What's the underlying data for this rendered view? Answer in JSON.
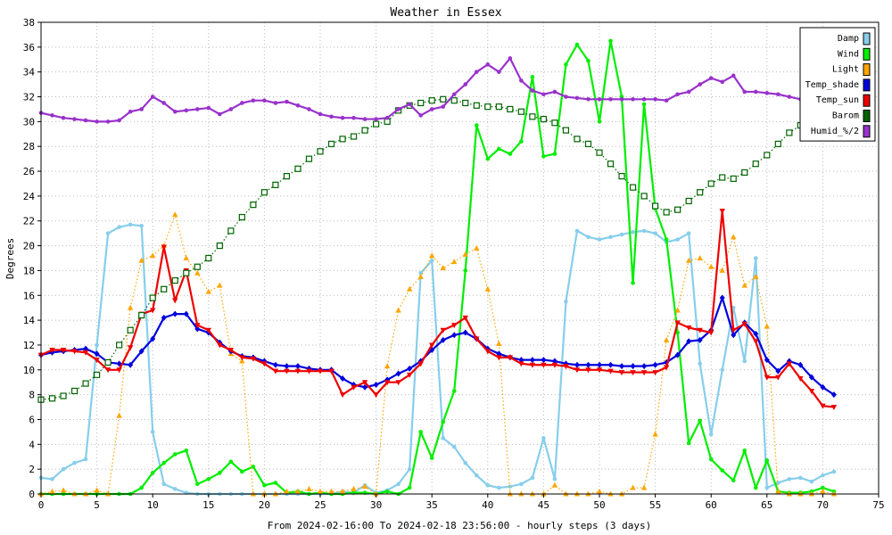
{
  "chart_data": {
    "type": "line",
    "title": "Weather in Essex",
    "xlabel": "From 2024-02-16:00 To 2024-02-18 23:56:00 - hourly steps (3 days)",
    "ylabel": "Degrees",
    "xlim": [
      0,
      75
    ],
    "ylim": [
      0,
      38
    ],
    "x_ticks": [
      0,
      5,
      10,
      15,
      20,
      25,
      30,
      35,
      40,
      45,
      50,
      55,
      60,
      65,
      70,
      75
    ],
    "y_ticks": [
      0,
      2,
      4,
      6,
      8,
      10,
      12,
      14,
      16,
      18,
      20,
      22,
      24,
      26,
      28,
      30,
      32,
      34,
      36,
      38
    ],
    "grid": true,
    "legend_position": "top-right",
    "series": [
      {
        "name": "Damp",
        "color": "#87ceeb",
        "marker": "circle",
        "dash": false,
        "values": [
          1.3,
          1.2,
          2.0,
          2.5,
          2.8,
          12.0,
          21.0,
          21.5,
          21.7,
          21.6,
          5.0,
          0.8,
          0.4,
          0.1,
          0.0,
          0.0,
          0.0,
          0.0,
          0.0,
          0.0,
          0.0,
          0.0,
          0.0,
          0.0,
          0.0,
          0.0,
          0.0,
          0.2,
          0.1,
          0.7,
          0.1,
          0.3,
          0.8,
          2.0,
          17.8,
          18.8,
          4.5,
          3.8,
          2.5,
          1.5,
          0.7,
          0.5,
          0.6,
          0.8,
          1.3,
          4.5,
          1.2,
          15.5,
          21.2,
          20.7,
          20.5,
          20.7,
          20.9,
          21.1,
          21.2,
          21.0,
          20.3,
          20.5,
          21.0,
          10.5,
          4.8,
          10.0,
          15.0,
          10.7,
          19.0,
          0.5,
          0.9,
          1.2,
          1.3,
          1.0,
          1.5,
          1.8
        ]
      },
      {
        "name": "Wind",
        "color": "#00ee00",
        "marker": "circle",
        "dash": false,
        "values": [
          0.0,
          0.0,
          0.0,
          0.0,
          0.0,
          0.0,
          0.0,
          0.0,
          0.0,
          0.5,
          1.7,
          2.5,
          3.2,
          3.5,
          0.8,
          1.2,
          1.7,
          2.6,
          1.8,
          2.2,
          0.7,
          0.9,
          0.1,
          0.2,
          0.0,
          0.1,
          0.0,
          0.0,
          0.1,
          0.1,
          0.0,
          0.2,
          0.0,
          0.5,
          5.0,
          2.9,
          5.8,
          8.3,
          18.0,
          29.7,
          27.0,
          27.8,
          27.4,
          28.4,
          33.6,
          27.2,
          27.4,
          34.6,
          36.2,
          34.9,
          30.0,
          36.5,
          32.0,
          17.0,
          31.4,
          23.0,
          20.5,
          13.0,
          4.1,
          5.9,
          2.8,
          1.9,
          1.1,
          3.5,
          0.5,
          2.7,
          0.2,
          0.1,
          0.1,
          0.2,
          0.5,
          0.2
        ]
      },
      {
        "name": "Light",
        "color": "#ffa500",
        "marker": "triangle",
        "dash": true,
        "values": [
          0.0,
          0.2,
          0.3,
          0.0,
          0.0,
          0.3,
          0.0,
          6.3,
          15.0,
          18.8,
          19.2,
          20.0,
          22.5,
          19.0,
          17.8,
          16.3,
          16.8,
          11.3,
          10.7,
          0.0,
          0.0,
          0.0,
          0.2,
          0.2,
          0.4,
          0.2,
          0.2,
          0.2,
          0.4,
          0.6,
          0.0,
          10.3,
          14.8,
          16.5,
          17.5,
          19.2,
          18.2,
          18.7,
          19.3,
          19.8,
          16.5,
          12.1,
          0.0,
          0.0,
          0.0,
          0.0,
          0.7,
          0.0,
          0.0,
          0.0,
          0.2,
          0.0,
          0.0,
          0.5,
          0.5,
          4.8,
          12.4,
          14.8,
          18.8,
          19.0,
          18.3,
          18.0,
          20.7,
          16.8,
          17.5,
          13.5,
          0.2,
          0.0,
          0.0,
          0.0,
          0.2,
          0.0
        ]
      },
      {
        "name": "Temp_shade",
        "color": "#0000dd",
        "marker": "diamond",
        "dash": false,
        "values": [
          11.2,
          11.4,
          11.5,
          11.6,
          11.7,
          11.3,
          10.6,
          10.5,
          10.4,
          11.5,
          12.5,
          14.2,
          14.5,
          14.5,
          13.3,
          13.0,
          12.2,
          11.5,
          11.1,
          11.0,
          10.7,
          10.4,
          10.3,
          10.3,
          10.1,
          10.0,
          10.0,
          9.3,
          8.8,
          8.6,
          8.8,
          9.2,
          9.7,
          10.1,
          10.7,
          11.6,
          12.4,
          12.8,
          13.0,
          12.5,
          11.7,
          11.3,
          11.0,
          10.8,
          10.8,
          10.8,
          10.7,
          10.5,
          10.4,
          10.4,
          10.4,
          10.4,
          10.3,
          10.3,
          10.3,
          10.4,
          10.6,
          11.2,
          12.3,
          12.4,
          13.2,
          15.8,
          12.8,
          13.8,
          12.9,
          10.8,
          9.9,
          10.7,
          10.4,
          9.4,
          8.6,
          8.0
        ]
      },
      {
        "name": "Temp_sun",
        "color": "#ee0000",
        "marker": "triangle-down",
        "dash": false,
        "values": [
          11.2,
          11.6,
          11.6,
          11.5,
          11.4,
          10.8,
          10.0,
          10.0,
          11.8,
          14.5,
          14.8,
          19.9,
          15.6,
          18.0,
          13.6,
          13.2,
          12.0,
          11.6,
          11.0,
          10.9,
          10.5,
          9.9,
          9.9,
          9.9,
          9.9,
          9.9,
          9.9,
          8.0,
          8.6,
          9.0,
          8.0,
          9.0,
          9.0,
          9.6,
          10.5,
          12.0,
          13.2,
          13.6,
          14.2,
          12.5,
          11.5,
          11.0,
          11.0,
          10.5,
          10.4,
          10.4,
          10.4,
          10.3,
          10.0,
          10.0,
          10.0,
          9.9,
          9.8,
          9.8,
          9.8,
          9.8,
          10.2,
          13.8,
          13.4,
          13.2,
          13.0,
          22.8,
          13.2,
          13.7,
          12.3,
          9.4,
          9.4,
          10.5,
          9.3,
          8.3,
          7.1,
          7.0
        ]
      },
      {
        "name": "Barom",
        "color": "#006400",
        "marker": "square",
        "dash": true,
        "values": [
          7.6,
          7.7,
          7.9,
          8.3,
          8.9,
          9.6,
          10.6,
          12.0,
          13.2,
          14.4,
          15.8,
          16.5,
          17.2,
          17.8,
          18.3,
          19.0,
          20.0,
          21.2,
          22.3,
          23.3,
          24.3,
          24.9,
          25.6,
          26.2,
          27.0,
          27.6,
          28.2,
          28.6,
          28.8,
          29.3,
          29.8,
          30.0,
          30.9,
          31.3,
          31.5,
          31.7,
          31.8,
          31.7,
          31.5,
          31.3,
          31.2,
          31.2,
          31.0,
          30.8,
          30.4,
          30.2,
          29.9,
          29.3,
          28.6,
          28.2,
          27.5,
          26.6,
          25.6,
          24.7,
          24.0,
          23.2,
          22.7,
          22.9,
          23.6,
          24.3,
          25.0,
          25.5,
          25.4,
          25.9,
          26.6,
          27.3,
          28.2,
          29.1,
          29.7,
          30.8,
          31.3,
          31.6
        ]
      },
      {
        "name": "Humid_%/2",
        "color": "#9932cc",
        "marker": "circle",
        "dash": false,
        "values": [
          30.7,
          30.5,
          30.3,
          30.2,
          30.1,
          30.0,
          30.0,
          30.1,
          30.8,
          31.0,
          32.0,
          31.5,
          30.8,
          30.9,
          31.0,
          31.1,
          30.6,
          31.0,
          31.5,
          31.7,
          31.7,
          31.5,
          31.6,
          31.3,
          31.0,
          30.6,
          30.4,
          30.3,
          30.3,
          30.2,
          30.2,
          30.3,
          31.0,
          31.4,
          30.5,
          31.0,
          31.2,
          32.2,
          33.0,
          34.0,
          34.6,
          34.0,
          35.1,
          33.3,
          32.5,
          32.2,
          32.4,
          32.0,
          31.9,
          31.8,
          31.8,
          31.8,
          31.8,
          31.8,
          31.8,
          31.8,
          31.7,
          32.2,
          32.4,
          33.0,
          33.5,
          33.2,
          33.7,
          32.4,
          32.4,
          32.3,
          32.2,
          32.0,
          31.8,
          31.9,
          31.9,
          31.9
        ]
      }
    ]
  }
}
